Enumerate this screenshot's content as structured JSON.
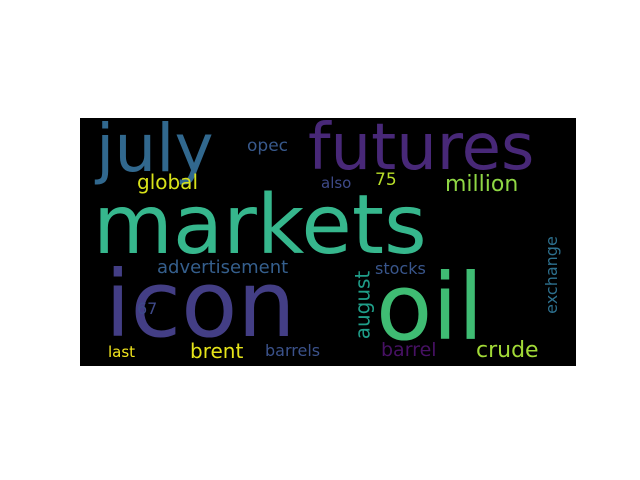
{
  "words": [
    {
      "text": "markets",
      "color": "#36b78d"
    },
    {
      "text": "icon",
      "color": "#433e85"
    },
    {
      "text": "oil",
      "color": "#3fbc73"
    },
    {
      "text": "futures",
      "color": "#482878"
    },
    {
      "text": "july",
      "color": "#31688e"
    },
    {
      "text": "million",
      "color": "#8fd744"
    },
    {
      "text": "crude",
      "color": "#a2da37"
    },
    {
      "text": "global",
      "color": "#d8e219"
    },
    {
      "text": "brent",
      "color": "#e5e419"
    },
    {
      "text": "august",
      "color": "#1f9e89"
    },
    {
      "text": "advertisement",
      "color": "#355f8d"
    },
    {
      "text": "stocks",
      "color": "#39568c"
    },
    {
      "text": "barrel",
      "color": "#471164"
    },
    {
      "text": "barrels",
      "color": "#3b528b"
    },
    {
      "text": "exchange",
      "color": "#2d708e"
    },
    {
      "text": "opec",
      "color": "#38598c"
    },
    {
      "text": "also",
      "color": "#3e4a89"
    },
    {
      "text": "75",
      "color": "#b8de29"
    },
    {
      "text": "67",
      "color": "#3e4989"
    },
    {
      "text": "last",
      "color": "#f1e51d"
    }
  ]
}
